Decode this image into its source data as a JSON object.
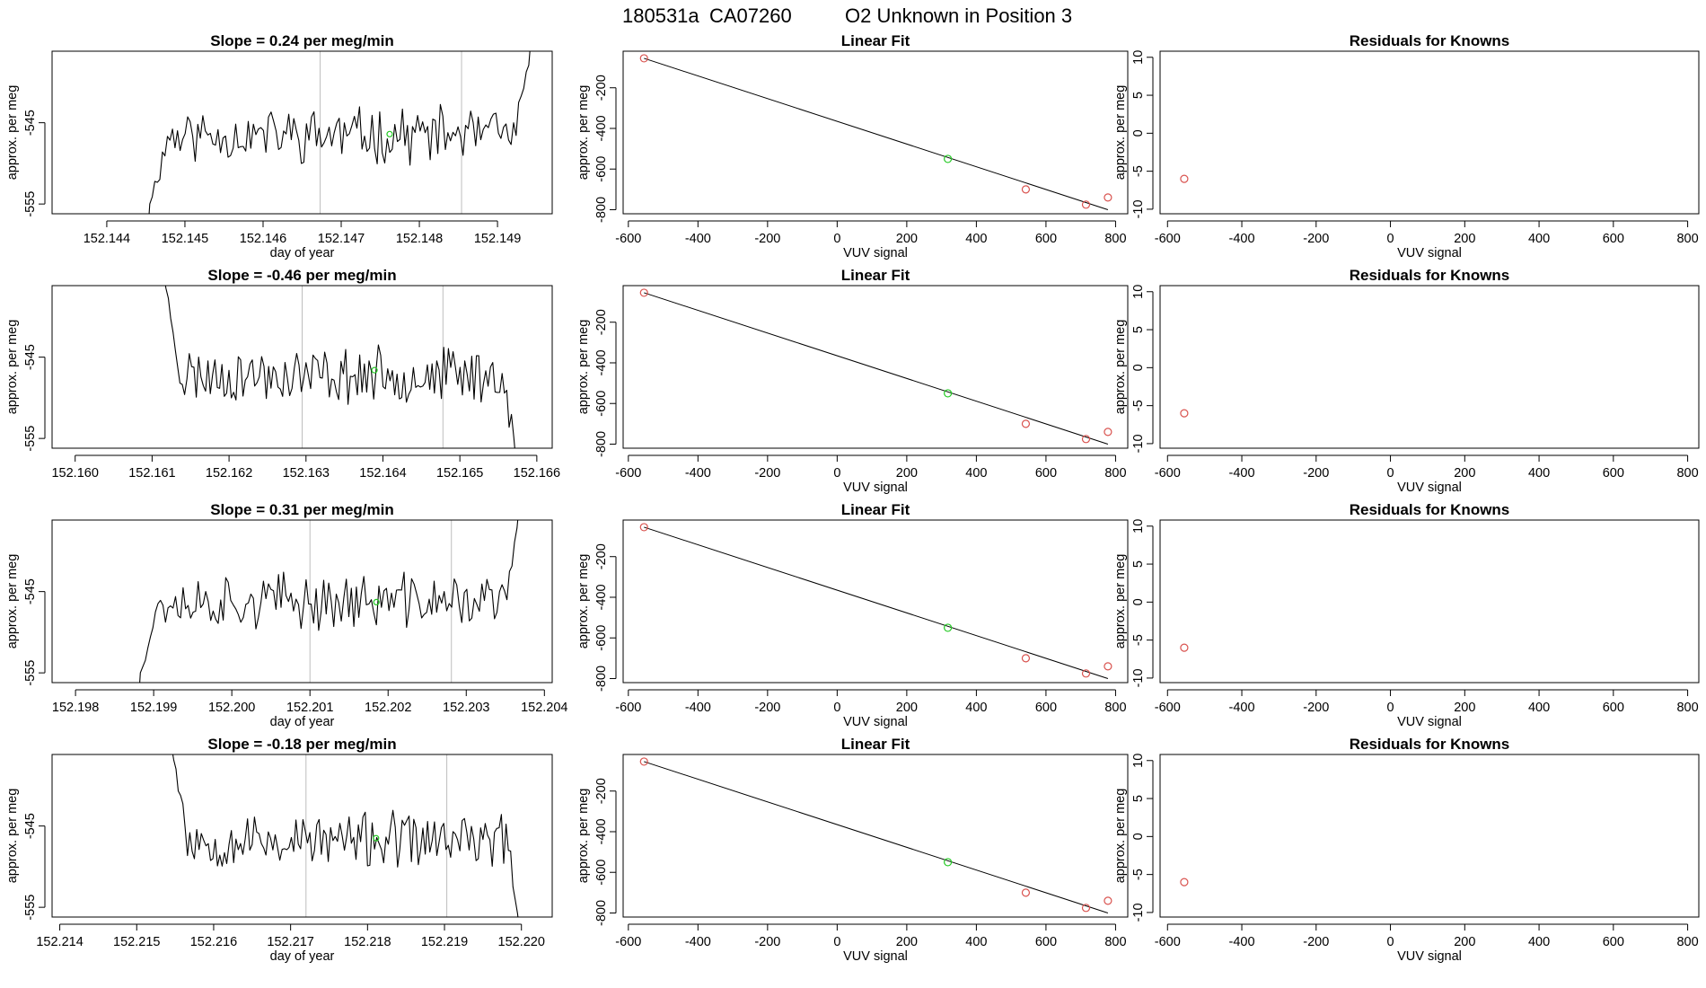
{
  "header": {
    "run": "180531a",
    "tank": "CA07260",
    "description": "O2 Unknown in Position  3"
  },
  "colors": {
    "trace": "#000000",
    "vline": "#bebebe",
    "known": "#d9534f",
    "unknown": "#22c922"
  },
  "chart_data": [
    {
      "type": "line",
      "panel": "time-series-row-1",
      "title": "Slope =  0.24  per meg/min",
      "xlabel": "day of year",
      "ylabel": "approx. per meg",
      "xticks": [
        152.144,
        152.145,
        152.146,
        152.147,
        152.148,
        152.149
      ],
      "xtick_labels": [
        "152.144",
        "152.145",
        "152.146",
        "152.147",
        "152.148",
        "152.149"
      ],
      "yticks": [
        -545,
        -555
      ],
      "ytick_labels": [
        "-545",
        "-555"
      ],
      "xlim": [
        152.1433,
        152.1497
      ],
      "ylim": [
        -556.2,
        -536.2
      ],
      "series": [
        {
          "name": "signal",
          "start": 152.14455,
          "end": 152.1494,
          "level": -546.5,
          "seed": 11
        }
      ],
      "vlines": [
        152.14673,
        152.14854
      ],
      "marker": {
        "x": 152.14762,
        "y": -546.4
      },
      "ramp": {
        "start_y": -558,
        "end_y": -532
      }
    },
    {
      "type": "line",
      "panel": "linear-fit-row-1",
      "title": "Linear Fit",
      "xlabel": "VUV signal",
      "ylabel": "approx. per meg",
      "xticks": [
        -600,
        -400,
        -200,
        0,
        200,
        400,
        600,
        800
      ],
      "xtick_labels": [
        "-600",
        "-400",
        "-200",
        "0",
        "200",
        "400",
        "600",
        "800"
      ],
      "yticks": [
        -200,
        -400,
        -600,
        -800
      ],
      "ytick_labels": [
        "-200",
        "-400",
        "-600",
        "-800"
      ],
      "xlim": [
        -615,
        835
      ],
      "ylim": [
        -820,
        -20
      ],
      "fit": {
        "x1": -555,
        "y1": -55,
        "x2": 778,
        "y2": -800
      },
      "knowns": [
        {
          "x": -555,
          "y": -55
        },
        {
          "x": 542,
          "y": -700
        },
        {
          "x": 715,
          "y": -775
        },
        {
          "x": 778,
          "y": -740
        }
      ],
      "unknown": {
        "x": 318,
        "y": -550
      }
    },
    {
      "type": "scatter",
      "panel": "residuals-row-1",
      "title": "Residuals for Knowns",
      "xlabel": "VUV signal",
      "ylabel": "approx. per meg",
      "xticks": [
        -600,
        -400,
        -200,
        0,
        200,
        400,
        600,
        800
      ],
      "xtick_labels": [
        "-600",
        "-400",
        "-200",
        "0",
        "200",
        "400",
        "600",
        "800"
      ],
      "yticks": [
        10,
        5,
        0,
        -5,
        -10
      ],
      "ytick_labels": [
        "10",
        "5",
        "0",
        "-5",
        "-10"
      ],
      "xlim": [
        -620,
        830
      ],
      "ylim": [
        -10.6,
        10.8
      ],
      "points": [
        {
          "x": -555,
          "y": -6
        }
      ]
    },
    {
      "type": "line",
      "panel": "time-series-row-2",
      "title": "Slope =  -0.46  per meg/min",
      "xlabel": "",
      "ylabel": "approx. per meg",
      "xticks": [
        152.16,
        152.161,
        152.162,
        152.163,
        152.164,
        152.165,
        152.166
      ],
      "xtick_labels": [
        "152.160",
        "152.161",
        "152.162",
        "152.163",
        "152.164",
        "152.165",
        "152.166"
      ],
      "yticks": [
        -545,
        -555
      ],
      "ytick_labels": [
        "-545",
        "-555"
      ],
      "xlim": [
        152.1597,
        152.1662
      ],
      "ylim": [
        -556.2,
        -536.2
      ],
      "series": [
        {
          "name": "signal",
          "start": 152.16115,
          "end": 152.1657,
          "level": -547.2,
          "seed": 23
        }
      ],
      "vlines": [
        152.16295,
        152.16478
      ],
      "marker": {
        "x": 152.16389,
        "y": -546.6
      },
      "ramp": {
        "start_y": -532,
        "end_y": -560
      }
    },
    {
      "type": "line",
      "panel": "linear-fit-row-2",
      "title": "Linear Fit",
      "xlabel": "VUV signal",
      "ylabel": "approx. per meg",
      "xticks": [
        -600,
        -400,
        -200,
        0,
        200,
        400,
        600,
        800
      ],
      "xtick_labels": [
        "-600",
        "-400",
        "-200",
        "0",
        "200",
        "400",
        "600",
        "800"
      ],
      "yticks": [
        -200,
        -400,
        -600,
        -800
      ],
      "ytick_labels": [
        "-200",
        "-400",
        "-600",
        "-800"
      ],
      "xlim": [
        -615,
        835
      ],
      "ylim": [
        -820,
        -20
      ],
      "fit": {
        "x1": -555,
        "y1": -55,
        "x2": 778,
        "y2": -800
      },
      "knowns": [
        {
          "x": -555,
          "y": -55
        },
        {
          "x": 542,
          "y": -700
        },
        {
          "x": 715,
          "y": -775
        },
        {
          "x": 778,
          "y": -740
        }
      ],
      "unknown": {
        "x": 318,
        "y": -550
      }
    },
    {
      "type": "scatter",
      "panel": "residuals-row-2",
      "title": "Residuals for Knowns",
      "xlabel": "VUV signal",
      "ylabel": "approx. per meg",
      "xticks": [
        -600,
        -400,
        -200,
        0,
        200,
        400,
        600,
        800
      ],
      "xtick_labels": [
        "-600",
        "-400",
        "-200",
        "0",
        "200",
        "400",
        "600",
        "800"
      ],
      "yticks": [
        10,
        5,
        0,
        -5,
        -10
      ],
      "ytick_labels": [
        "10",
        "5",
        "0",
        "-5",
        "-10"
      ],
      "xlim": [
        -620,
        830
      ],
      "ylim": [
        -10.6,
        10.8
      ],
      "points": [
        {
          "x": -555,
          "y": -6
        }
      ]
    },
    {
      "type": "line",
      "panel": "time-series-row-3",
      "title": "Slope =  0.31  per meg/min",
      "xlabel": "day of year",
      "ylabel": "approx. per meg",
      "xticks": [
        152.198,
        152.199,
        152.2,
        152.201,
        152.202,
        152.203,
        152.204
      ],
      "xtick_labels": [
        "152.198",
        "152.199",
        "152.200",
        "152.201",
        "152.202",
        "152.203",
        "152.204"
      ],
      "yticks": [
        -545,
        -555
      ],
      "ytick_labels": [
        "-545",
        "-555"
      ],
      "xlim": [
        152.1977,
        152.2041
      ],
      "ylim": [
        -556.2,
        -536.2
      ],
      "series": [
        {
          "name": "signal",
          "start": 152.19883,
          "end": 152.20365,
          "level": -546.2,
          "seed": 37
        }
      ],
      "vlines": [
        152.201,
        152.20281
      ],
      "marker": {
        "x": 152.20185,
        "y": -546.3
      },
      "ramp": {
        "start_y": -558,
        "end_y": -532
      }
    },
    {
      "type": "line",
      "panel": "linear-fit-row-3",
      "title": "Linear Fit",
      "xlabel": "VUV signal",
      "ylabel": "approx. per meg",
      "xticks": [
        -600,
        -400,
        -200,
        0,
        200,
        400,
        600,
        800
      ],
      "xtick_labels": [
        "-600",
        "-400",
        "-200",
        "0",
        "200",
        "400",
        "600",
        "800"
      ],
      "yticks": [
        -200,
        -400,
        -600,
        -800
      ],
      "ytick_labels": [
        "-200",
        "-400",
        "-600",
        "-800"
      ],
      "xlim": [
        -615,
        835
      ],
      "ylim": [
        -820,
        -20
      ],
      "fit": {
        "x1": -555,
        "y1": -55,
        "x2": 778,
        "y2": -800
      },
      "knowns": [
        {
          "x": -555,
          "y": -55
        },
        {
          "x": 542,
          "y": -700
        },
        {
          "x": 715,
          "y": -775
        },
        {
          "x": 778,
          "y": -740
        }
      ],
      "unknown": {
        "x": 318,
        "y": -550
      }
    },
    {
      "type": "scatter",
      "panel": "residuals-row-3",
      "title": "Residuals for Knowns",
      "xlabel": "VUV signal",
      "ylabel": "approx. per meg",
      "xticks": [
        -600,
        -400,
        -200,
        0,
        200,
        400,
        600,
        800
      ],
      "xtick_labels": [
        "-600",
        "-400",
        "-200",
        "0",
        "200",
        "400",
        "600",
        "800"
      ],
      "yticks": [
        10,
        5,
        0,
        -5,
        -10
      ],
      "ytick_labels": [
        "10",
        "5",
        "0",
        "-5",
        "-10"
      ],
      "xlim": [
        -620,
        830
      ],
      "ylim": [
        -10.6,
        10.8
      ],
      "points": [
        {
          "x": -555,
          "y": -6
        }
      ]
    },
    {
      "type": "line",
      "panel": "time-series-row-4",
      "title": "Slope =  -0.18  per meg/min",
      "xlabel": "day of year",
      "ylabel": "approx. per meg",
      "xticks": [
        152.214,
        152.215,
        152.216,
        152.217,
        152.218,
        152.219,
        152.22
      ],
      "xtick_labels": [
        "152.214",
        "152.215",
        "152.216",
        "152.217",
        "152.218",
        "152.219",
        "152.220"
      ],
      "yticks": [
        -545,
        -555
      ],
      "ytick_labels": [
        "-545",
        "-555"
      ],
      "xlim": [
        152.2139,
        152.2204
      ],
      "ylim": [
        -556.2,
        -536.2
      ],
      "series": [
        {
          "name": "signal",
          "start": 152.21545,
          "end": 152.21995,
          "level": -546.8,
          "seed": 53
        }
      ],
      "vlines": [
        152.2172,
        152.21903
      ],
      "marker": {
        "x": 152.21811,
        "y": -546.5
      },
      "ramp": {
        "start_y": -532,
        "end_y": -560
      }
    },
    {
      "type": "line",
      "panel": "linear-fit-row-4",
      "title": "Linear Fit",
      "xlabel": "VUV signal",
      "ylabel": "approx. per meg",
      "xticks": [
        -600,
        -400,
        -200,
        0,
        200,
        400,
        600,
        800
      ],
      "xtick_labels": [
        "-600",
        "-400",
        "-200",
        "0",
        "200",
        "400",
        "600",
        "800"
      ],
      "yticks": [
        -200,
        -400,
        -600,
        -800
      ],
      "ytick_labels": [
        "-200",
        "-400",
        "-600",
        "-800"
      ],
      "xlim": [
        -615,
        835
      ],
      "ylim": [
        -820,
        -20
      ],
      "fit": {
        "x1": -555,
        "y1": -55,
        "x2": 778,
        "y2": -800
      },
      "knowns": [
        {
          "x": -555,
          "y": -55
        },
        {
          "x": 542,
          "y": -700
        },
        {
          "x": 715,
          "y": -775
        },
        {
          "x": 778,
          "y": -740
        }
      ],
      "unknown": {
        "x": 318,
        "y": -550
      }
    },
    {
      "type": "scatter",
      "panel": "residuals-row-4",
      "title": "Residuals for Knowns",
      "xlabel": "VUV signal",
      "ylabel": "approx. per meg",
      "xticks": [
        -600,
        -400,
        -200,
        0,
        200,
        400,
        600,
        800
      ],
      "xtick_labels": [
        "-600",
        "-400",
        "-200",
        "0",
        "200",
        "400",
        "600",
        "800"
      ],
      "yticks": [
        10,
        5,
        0,
        -5,
        -10
      ],
      "ytick_labels": [
        "10",
        "5",
        "0",
        "-5",
        "-10"
      ],
      "xlim": [
        -620,
        830
      ],
      "ylim": [
        -10.6,
        10.8
      ],
      "points": [
        {
          "x": -555,
          "y": -6
        }
      ]
    }
  ]
}
